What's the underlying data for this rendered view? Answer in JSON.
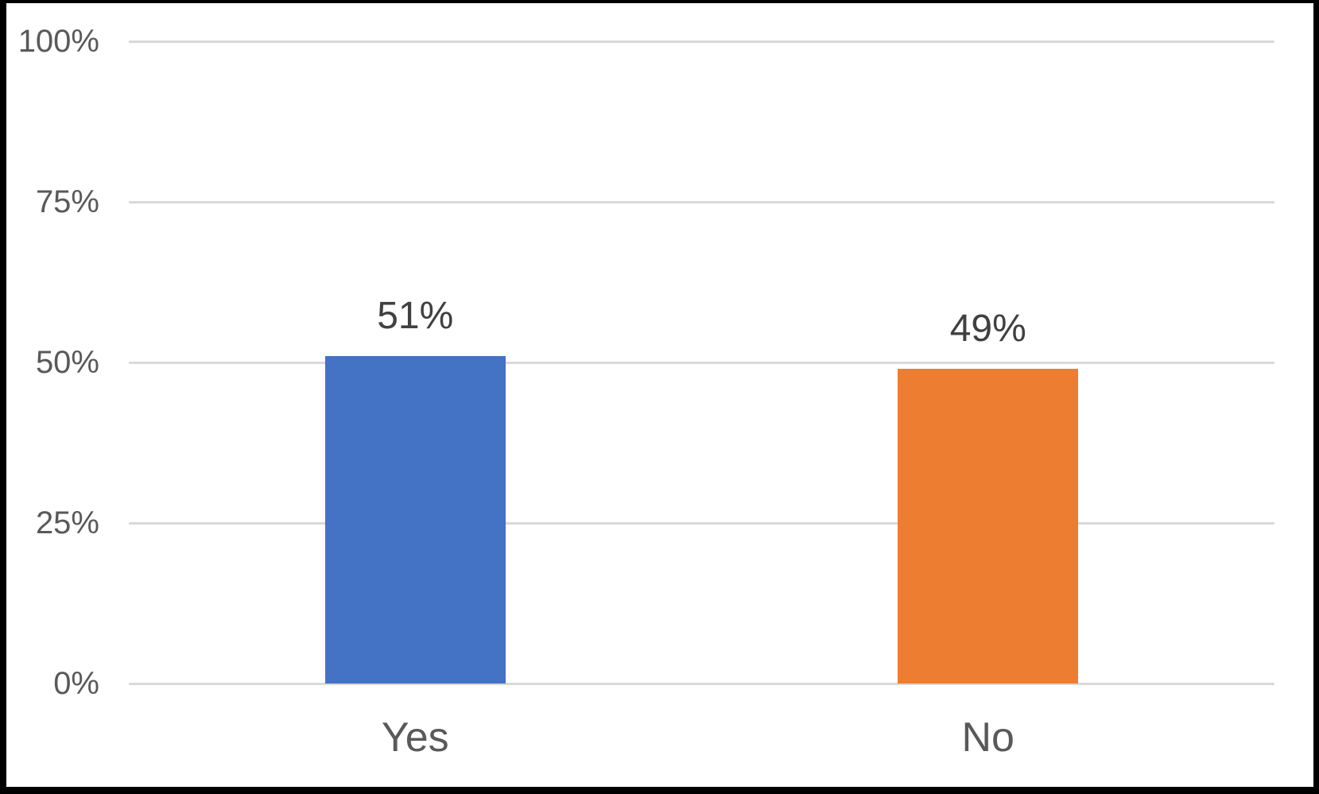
{
  "chart_data": {
    "type": "bar",
    "categories": [
      "Yes",
      "No"
    ],
    "values": [
      51,
      49
    ],
    "data_labels": [
      "51%",
      "49%"
    ],
    "bar_colors": [
      "#4472C4",
      "#ED7D31"
    ],
    "title": "",
    "xlabel": "",
    "ylabel": "",
    "ylim": [
      0,
      100
    ],
    "yticks": [
      0,
      25,
      50,
      75,
      100
    ],
    "ytick_labels": [
      "0%",
      "25%",
      "50%",
      "75%",
      "100%"
    ],
    "grid": "horizontal",
    "legend": "none"
  },
  "colors": {
    "gridline": "#D9D9D9",
    "axis_text": "#595959",
    "data_label_text": "#404040",
    "category_text": "#595959",
    "frame_border": "#000000",
    "background": "#FFFFFF"
  }
}
